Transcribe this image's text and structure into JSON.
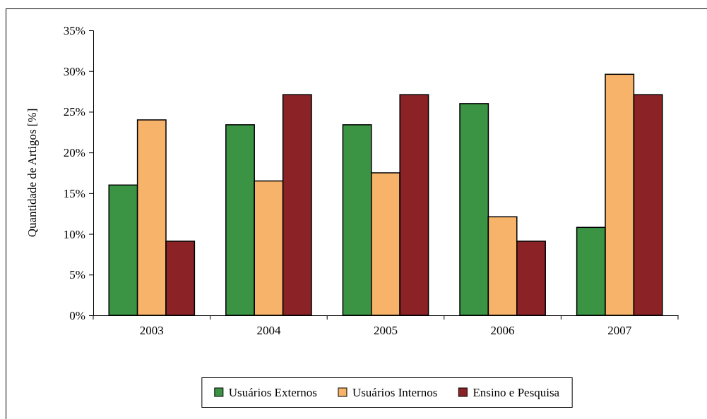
{
  "chart_data": {
    "type": "bar",
    "ylabel": "Quantidade de Artigos [%]",
    "categories": [
      "2003",
      "2004",
      "2005",
      "2006",
      "2007"
    ],
    "series": [
      {
        "name": "Usuários Externos",
        "color": "#3a9444",
        "values": [
          16,
          23.4,
          23.4,
          26,
          10.8
        ]
      },
      {
        "name": "Usuários Internos",
        "color": "#f7b36a",
        "values": [
          24,
          16.5,
          17.5,
          12.1,
          29.6
        ]
      },
      {
        "name": "Ensino e Pesquisa",
        "color": "#8a2226",
        "values": [
          9.1,
          27.1,
          27.1,
          9.1,
          27.1
        ]
      }
    ],
    "ylim": [
      0,
      35
    ],
    "yticks": [
      {
        "value": 0,
        "label": "0%"
      },
      {
        "value": 5,
        "label": "5%"
      },
      {
        "value": 10,
        "label": "10%"
      },
      {
        "value": 15,
        "label": "15%"
      },
      {
        "value": 20,
        "label": "20%"
      },
      {
        "value": 25,
        "label": "25%"
      },
      {
        "value": 30,
        "label": "30%"
      },
      {
        "value": 35,
        "label": "35%"
      }
    ],
    "grid": false,
    "legend": "bottom"
  }
}
